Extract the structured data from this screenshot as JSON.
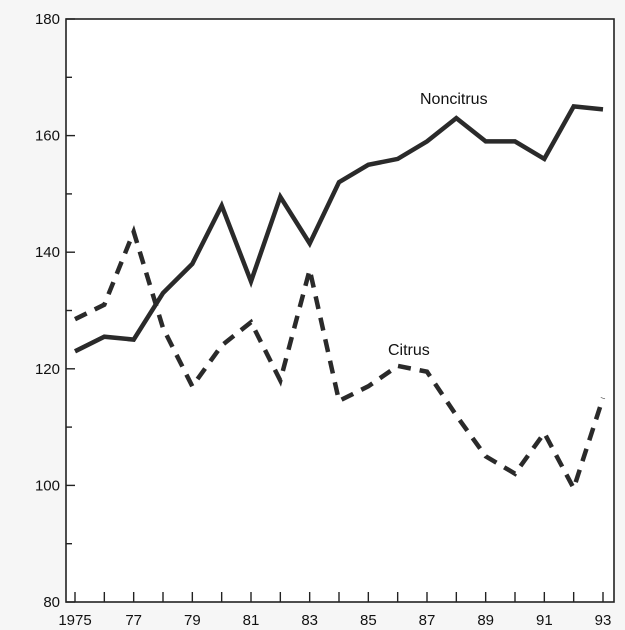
{
  "chart_data": {
    "type": "line",
    "title": "",
    "xlabel": "",
    "ylabel": "",
    "x": [
      1975,
      1976,
      1977,
      1978,
      1979,
      1980,
      1981,
      1982,
      1983,
      1984,
      1985,
      1986,
      1987,
      1988,
      1989,
      1990,
      1991,
      1992,
      1993
    ],
    "x_tick_labels": [
      "1975",
      "77",
      "79",
      "81",
      "83",
      "85",
      "87",
      "89",
      "91",
      "93"
    ],
    "y_ticks": [
      80,
      100,
      120,
      140,
      160,
      180
    ],
    "ylim": [
      80,
      180
    ],
    "xlim": [
      1975,
      1993
    ],
    "grid": false,
    "legend": "none; series labelled directly on lines",
    "series": [
      {
        "name": "Noncitrus",
        "style": "solid",
        "color": "#2a2a2a",
        "values": [
          123,
          125.5,
          125,
          133,
          138,
          148,
          135,
          149.5,
          141.5,
          152,
          155,
          156,
          159,
          163,
          159,
          159,
          156,
          165,
          164.5
        ]
      },
      {
        "name": "Citrus",
        "style": "dashed",
        "color": "#2a2a2a",
        "values": [
          128.5,
          131,
          143.5,
          127,
          117,
          124,
          128,
          118,
          137,
          114.5,
          117,
          120.5,
          119.5,
          112,
          105,
          102,
          109,
          99.5,
          115
        ]
      }
    ]
  }
}
